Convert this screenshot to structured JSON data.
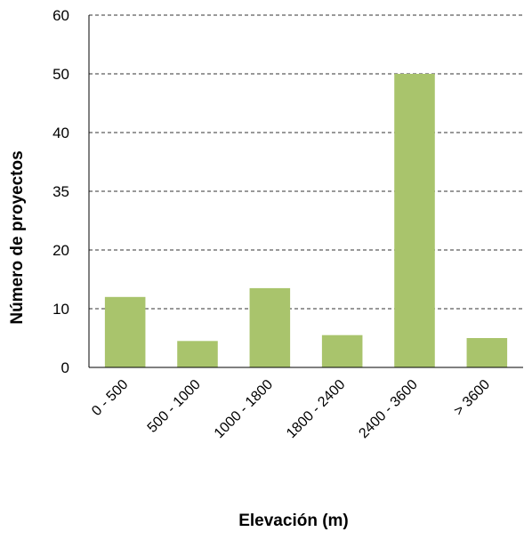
{
  "chart_data": {
    "type": "bar",
    "title": "",
    "xlabel": "Elevación (m)",
    "ylabel": "Número de proyectos",
    "categories": [
      "0 - 500",
      "500 - 1000",
      "1000 - 1800",
      "1800 - 2400",
      "2400 - 3600",
      "> 3600"
    ],
    "values": [
      12,
      4.5,
      13.5,
      5.5,
      50,
      5
    ],
    "ytick_labels": [
      "0",
      "10",
      "20",
      "35",
      "40",
      "50",
      "60"
    ],
    "ylim": [
      0,
      60
    ],
    "grid": "horizontal dashed",
    "bar_color": "#a9c46c",
    "grid_color": "#333333"
  }
}
